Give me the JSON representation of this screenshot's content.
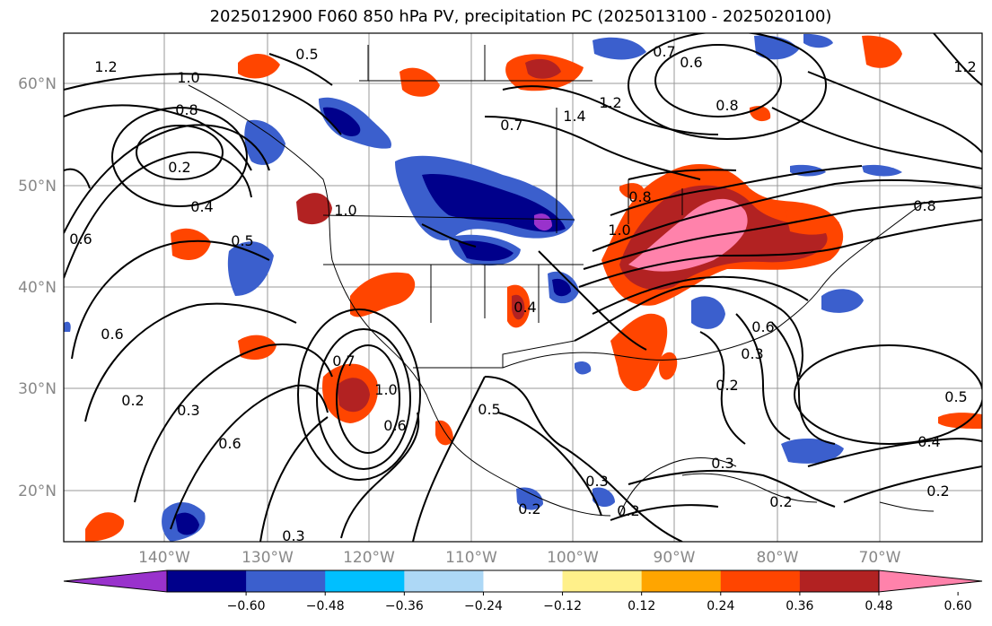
{
  "title": "2025012900 F060 850 hPa PV, precipitation PC (2025013100 - 2025020100)",
  "map": {
    "lat_ticks": [
      "60°N",
      "50°N",
      "40°N",
      "30°N",
      "20°N"
    ],
    "lon_ticks": [
      "140°W",
      "130°W",
      "120°W",
      "110°W",
      "100°W",
      "90°W",
      "80°W",
      "70°W"
    ],
    "contour_labels": [
      "1.2",
      "1.0",
      "0.8",
      "0.5",
      "0.2",
      "0.4",
      "0.6",
      "0.5",
      "0.6",
      "0.3",
      "0.2",
      "0.6",
      "0.3",
      "1.0",
      "0.6",
      "0.5",
      "0.7",
      "1.0",
      "1.4",
      "1.2",
      "0.7",
      "0.6",
      "0.8",
      "1.0",
      "0.8",
      "0.4",
      "0.3",
      "0.2",
      "0.3",
      "0.2",
      "0.5",
      "0.4",
      "0.2",
      "0.2",
      "1.2",
      "0.8",
      "0.7",
      "0.6",
      "0.3",
      "0.2"
    ]
  },
  "colorbar": {
    "labels": [
      "-0.60",
      "-0.48",
      "-0.36",
      "-0.24",
      "-0.12",
      "0.12",
      "0.24",
      "0.36",
      "0.48",
      "0.60"
    ],
    "colors": [
      "#9932cc",
      "#00008b",
      "#3b5fcd",
      "#00bfff",
      "#add8f6",
      "#ffffff",
      "#fff08a",
      "#ffa500",
      "#ff4500",
      "#b22222",
      "#ff82ab"
    ]
  }
}
